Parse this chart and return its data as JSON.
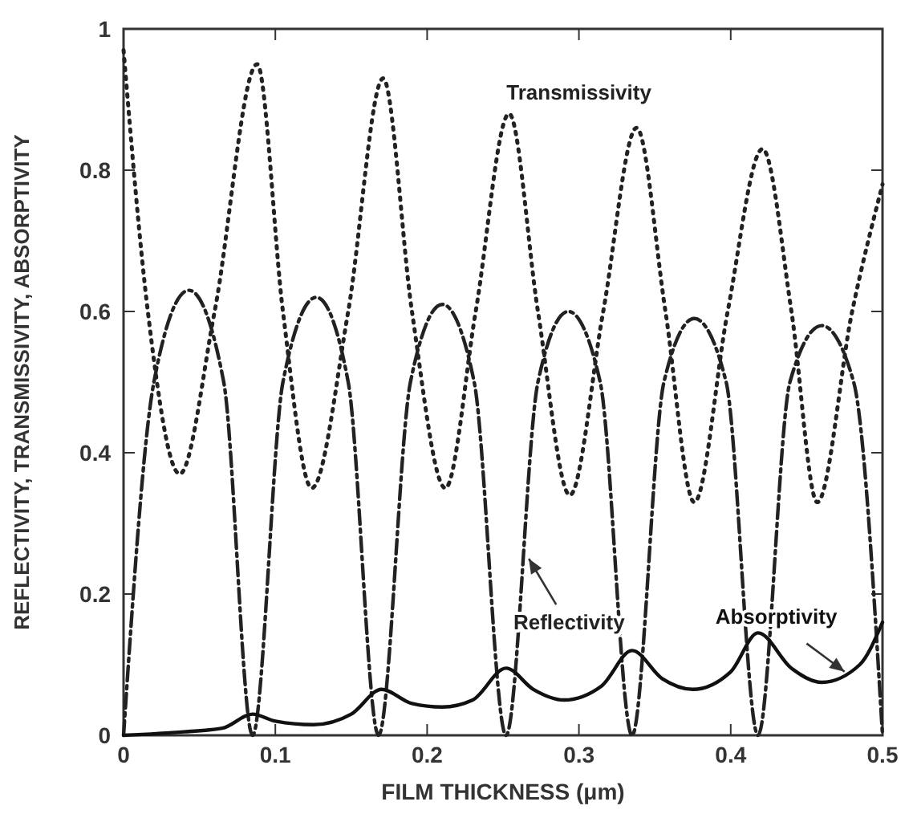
{
  "chart_data": {
    "type": "line",
    "xlabel": "FILM THICKNESS (μm)",
    "ylabel": "REFLECTIVITY, TRANSMISSIVITY, ABSORPTIVITY",
    "xlim": [
      0,
      0.5
    ],
    "ylim": [
      0,
      1
    ],
    "xticks": [
      0,
      0.1,
      0.2,
      0.3,
      0.4,
      0.5
    ],
    "yticks": [
      0,
      0.2,
      0.4,
      0.6,
      0.8,
      1
    ],
    "grid": false,
    "marker": "none",
    "series": [
      {
        "name": "Transmissivity",
        "color": "#222222",
        "line_style": "dotted",
        "x": [
          0,
          0.016,
          0.037,
          0.06,
          0.088,
          0.105,
          0.124,
          0.148,
          0.171,
          0.19,
          0.212,
          0.232,
          0.254,
          0.273,
          0.294,
          0.316,
          0.338,
          0.357,
          0.376,
          0.398,
          0.421,
          0.44,
          0.457,
          0.48,
          0.5
        ],
        "values": [
          0.97,
          0.6,
          0.37,
          0.6,
          0.95,
          0.6,
          0.35,
          0.6,
          0.93,
          0.6,
          0.35,
          0.6,
          0.88,
          0.6,
          0.34,
          0.6,
          0.86,
          0.6,
          0.33,
          0.6,
          0.83,
          0.6,
          0.33,
          0.6,
          0.78
        ]
      },
      {
        "name": "Reflectivity",
        "color": "#222222",
        "line_style": "dashed",
        "x": [
          0,
          0.02,
          0.043,
          0.066,
          0.085,
          0.105,
          0.127,
          0.148,
          0.168,
          0.189,
          0.21,
          0.231,
          0.252,
          0.273,
          0.293,
          0.314,
          0.335,
          0.356,
          0.376,
          0.397,
          0.418,
          0.439,
          0.46,
          0.481,
          0.5
        ],
        "values": [
          0,
          0.5,
          0.63,
          0.5,
          0,
          0.5,
          0.62,
          0.5,
          0,
          0.5,
          0.61,
          0.5,
          0,
          0.5,
          0.6,
          0.5,
          0,
          0.5,
          0.59,
          0.5,
          0,
          0.5,
          0.58,
          0.5,
          0
        ]
      },
      {
        "name": "Absorptivity",
        "color": "#111111",
        "line_style": "solid",
        "x": [
          0,
          0.04,
          0.065,
          0.085,
          0.1,
          0.125,
          0.15,
          0.17,
          0.19,
          0.21,
          0.23,
          0.252,
          0.27,
          0.29,
          0.315,
          0.335,
          0.355,
          0.375,
          0.4,
          0.418,
          0.44,
          0.46,
          0.485,
          0.5
        ],
        "values": [
          0,
          0.005,
          0.01,
          0.03,
          0.02,
          0.015,
          0.03,
          0.065,
          0.045,
          0.04,
          0.05,
          0.095,
          0.065,
          0.05,
          0.07,
          0.12,
          0.08,
          0.065,
          0.09,
          0.145,
          0.095,
          0.075,
          0.1,
          0.16
        ]
      }
    ]
  }
}
